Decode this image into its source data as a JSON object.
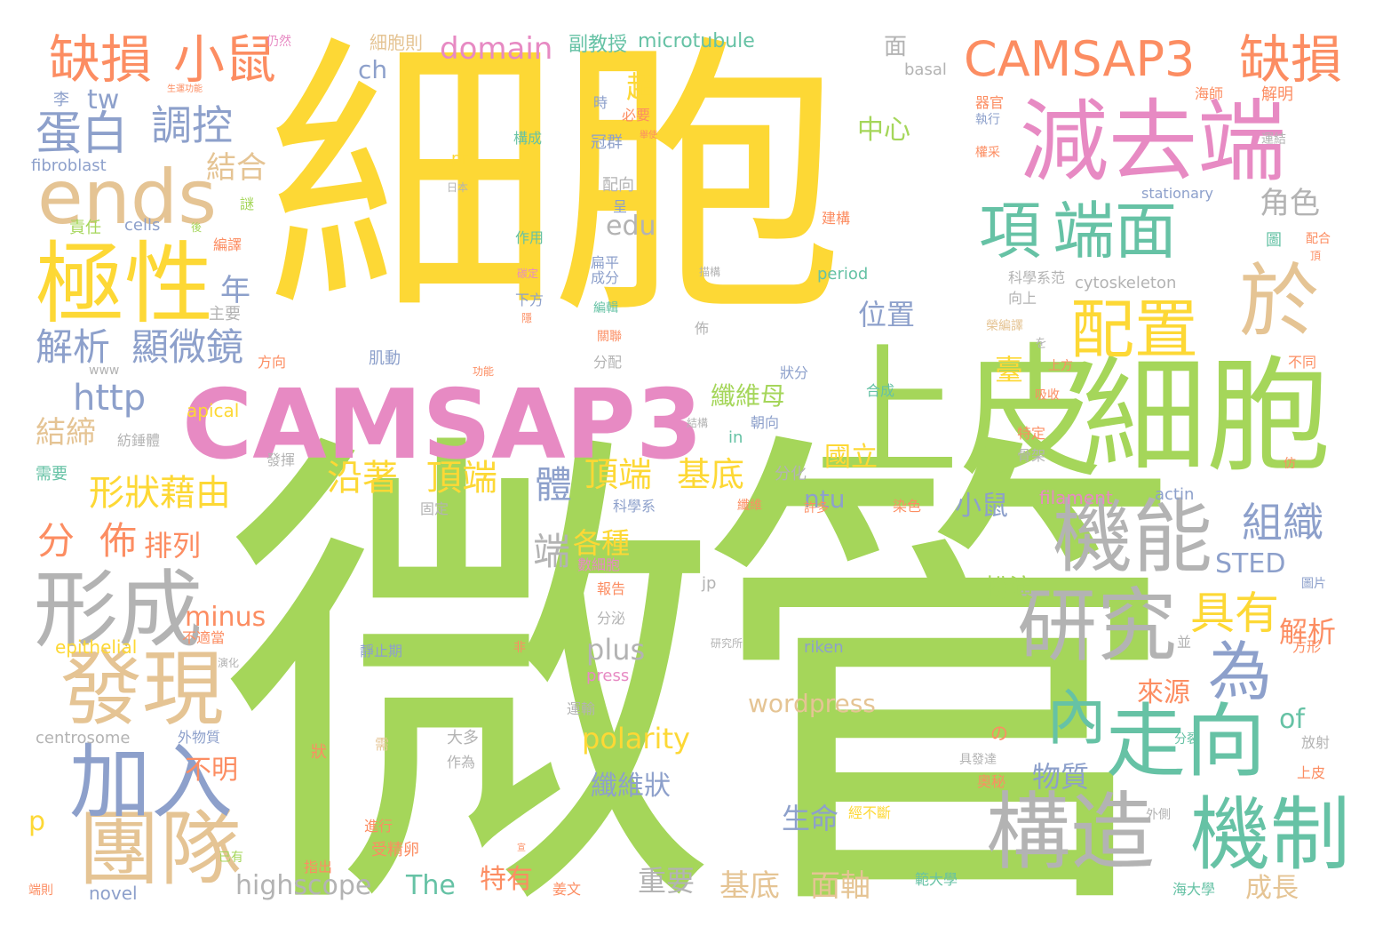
{
  "palette": {
    "yellow": "#fdd835",
    "green": "#a5d65a",
    "pink": "#e78ac3",
    "orange": "#fc8d62",
    "blue": "#8da0cb",
    "teal": "#66c2a5",
    "tan": "#e5c494",
    "gray": "#b3b3b3"
  },
  "words": [
    "細胞",
    "微管",
    "CAMSAP3",
    "上皮",
    "細胞",
    "減去端",
    "極性",
    "機能",
    "形成",
    "研究",
    "構造",
    "機制",
    "走向",
    "發現",
    "團隊",
    "加入",
    "ends",
    "缺損",
    "小鼠",
    "CAMSAP3",
    "缺損",
    "項",
    "端面",
    "配置",
    "於",
    "內",
    "為",
    "具有",
    "蛋白",
    "調控",
    "解析",
    "顯微鏡",
    "http",
    "形狀藉由",
    "分",
    "佈",
    "沿著",
    "頂端",
    "體",
    "頂端",
    "基底",
    "組織",
    "端",
    "各種",
    "排列",
    "年",
    "結締",
    "tw",
    "ch",
    "domain",
    "microtubule",
    "副教授",
    "細胞則",
    "仍然",
    "面",
    "basal",
    "中心",
    "超",
    "結合",
    "位置",
    "國立",
    "纖維母",
    "臺",
    "edu",
    "角色",
    "minus",
    "不明",
    "plus",
    "polarity",
    "纖維狀",
    "生命",
    "highscope",
    "The",
    "特有",
    "重要",
    "基底",
    "面軸",
    "成長",
    "物質",
    "小鼠",
    "扮演",
    "STED",
    "wordpress",
    "來源",
    "of",
    "解析",
    "ntu",
    "p",
    "epithelial",
    "centrosome",
    "novel",
    "fibroblast",
    "cells",
    "責任",
    "李",
    "主要",
    "www",
    "方向",
    "肌動",
    "apical",
    "紡錘體",
    "需要",
    "發揮",
    "in",
    "朝向",
    "分化",
    "狀分",
    "filament",
    "actin",
    "固定",
    "科學系",
    "數細胞",
    "報告",
    "jp",
    "分泌",
    "riken",
    "研究所",
    "press",
    "運輸",
    "大多",
    "作為",
    "狀",
    "經不斷",
    "進行",
    "受精卵",
    "指出",
    "姜文",
    "範大學",
    "海大學",
    "已有",
    "端則",
    "外物質",
    "冠群",
    "配向",
    "呈",
    "作用",
    "扁平",
    "成分",
    "下方",
    "編輯",
    "必要",
    "構成",
    "pr",
    "日本",
    "時",
    "period",
    "cytoskeleton",
    "科學系范",
    "向上",
    "榮編譯",
    "上方",
    "吸收",
    "合成",
    "建構",
    "stationary",
    "圖",
    "配合",
    "頂",
    "不同",
    "特定",
    "骨架",
    "仿",
    "圖片",
    "方形",
    "放射",
    "上皮",
    "外側",
    "奧秘",
    "具發達",
    "染色",
    "許多",
    "纖維",
    "不適當",
    "演化",
    "靜止期",
    "非",
    "分裂",
    "並",
    "の",
    "を",
    "海師",
    "解明",
    "器官",
    "執行",
    "運結",
    "權采",
    "舉使",
    "生運功能",
    "謎",
    "後",
    "編譯",
    "功能",
    "分配",
    "關聯",
    "佈",
    "描構",
    "碳定",
    "隱",
    "宣",
    "需",
    "結構"
  ]
}
